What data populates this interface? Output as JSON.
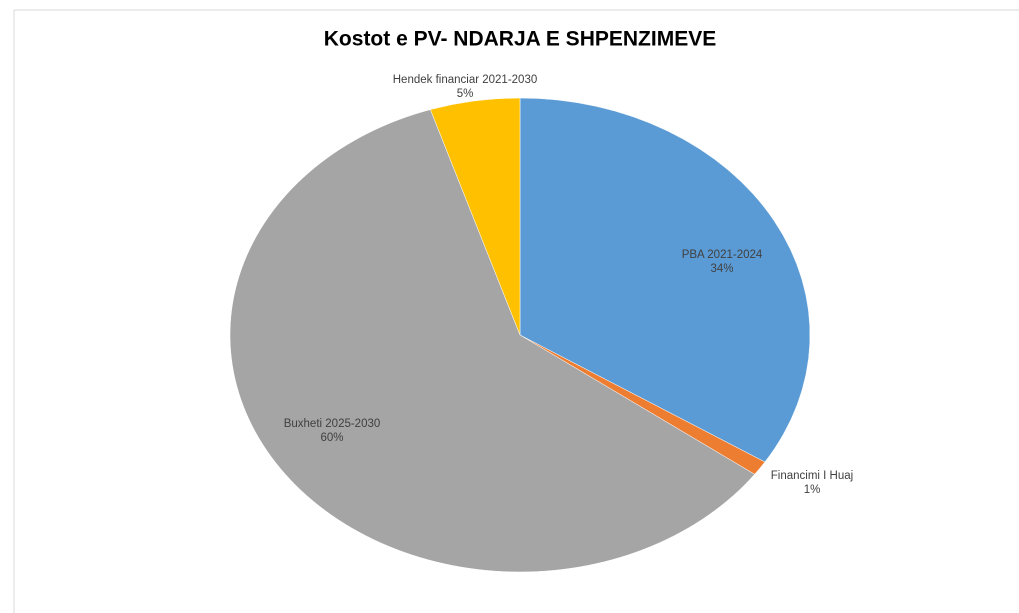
{
  "chart_data": {
    "type": "pie",
    "title": "Kostot e PV- NDARJA E SHPENZIMEVE",
    "categories": [
      "PBA 2021-2024",
      "Financimi I Huaj",
      "Buxheti 2025-2030",
      "Hendek financiar 2021-2030"
    ],
    "values": [
      34,
      1,
      60,
      5
    ],
    "value_labels": [
      "34%",
      "1%",
      "60%",
      "5%"
    ],
    "colors": [
      "#5b9bd5",
      "#ed7d31",
      "#a5a5a5",
      "#ffc000"
    ]
  }
}
